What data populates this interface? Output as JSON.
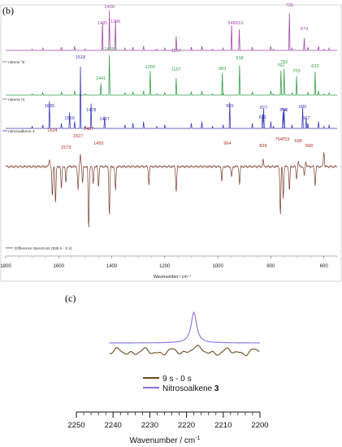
{
  "colors": {
    "nitrosoalkene_top": "#a04aa8",
    "nitrene_mid": "#35a04a",
    "nitrosoalkene": "#3a3ab8",
    "difference": "#7a3a2a",
    "peak_label_diff": "#b0302a",
    "c_blue": "#8a6fe0",
    "c_brown": "#6b4a1c"
  },
  "panel_b": {
    "label": "(b)",
    "chart_data": {
      "type": "line",
      "xlabel": "Wavenumber / cm⁻¹",
      "xlim": [
        1800,
        550
      ],
      "xreversed": true,
      "xticks": [
        1800,
        1600,
        1400,
        1200,
        1000,
        800,
        600
      ],
      "series": [
        {
          "name": "",
          "peaks": [
            {
              "x": 1435,
              "h": 0.68
            },
            {
              "x": 1409,
              "h": 0.98
            },
            {
              "x": 1386,
              "h": 0.72
            },
            {
              "x": 1157,
              "h": 0.35
            },
            {
              "x": 948,
              "h": 0.62
            },
            {
              "x": 919,
              "h": 0.52
            },
            {
              "x": 730,
              "h": 0.92
            },
            {
              "x": 674,
              "h": 0.3
            }
          ],
          "labels": [
            "1435",
            "1409",
            "1386",
            "1157",
            "948",
            "919",
            "730",
            "674"
          ]
        },
        {
          "name": "nitrene ³2",
          "peaks": [
            {
              "x": 1441,
              "h": 0.28
            },
            {
              "x": 1409,
              "h": 0.95
            },
            {
              "x": 1255,
              "h": 0.58
            },
            {
              "x": 1157,
              "h": 0.4
            },
            {
              "x": 983,
              "h": 0.52
            },
            {
              "x": 918,
              "h": 0.7
            },
            {
              "x": 762,
              "h": 0.58
            },
            {
              "x": 750,
              "h": 0.62
            },
            {
              "x": 703,
              "h": 0.45
            },
            {
              "x": 633,
              "h": 0.55
            }
          ],
          "labels": [
            "1441",
            "1409",
            "1255",
            "1157",
            "983",
            "918",
            "762",
            "750",
            "703",
            "633"
          ]
        },
        {
          "name": "nitrene ¹2",
          "peaks": [
            {
              "x": 1635,
              "h": 0.42
            },
            {
              "x": 1559,
              "h": 0.25
            },
            {
              "x": 1518,
              "h": 0.95
            },
            {
              "x": 1478,
              "h": 0.38
            },
            {
              "x": 1427,
              "h": 0.18
            },
            {
              "x": 955,
              "h": 0.4
            },
            {
              "x": 831,
              "h": 0.22
            },
            {
              "x": 827,
              "h": 0.3
            },
            {
              "x": 754,
              "h": 0.25
            },
            {
              "x": 750,
              "h": 0.3
            },
            {
              "x": 680,
              "h": 0.32
            },
            {
              "x": 667,
              "h": 0.16
            }
          ],
          "labels": [
            "1635",
            "1559",
            "1518",
            "1478",
            "1427",
            "955",
            "831",
            "827",
            "754",
            "750",
            "680",
            "667"
          ]
        },
        {
          "name": "nitrosoalkene 3",
          "peaks": [],
          "labels": []
        },
        {
          "name": "Difference Spectrum (536 s - 0 s)",
          "labels": [
            "1624",
            "1573",
            "1527",
            "1487",
            "1450",
            "964",
            "829",
            "764",
            "753",
            "696",
            "668"
          ],
          "label_x": [
            1624,
            1573,
            1527,
            1487,
            1450,
            964,
            829,
            764,
            753,
            696,
            668
          ]
        }
      ]
    }
  },
  "panel_c": {
    "label": "(c)",
    "chart_data": {
      "type": "line",
      "xlabel": "Wavenumber / cm",
      "xlabel_sup": "-1",
      "xlim": [
        2250,
        2200
      ],
      "xreversed": true,
      "xticks": [
        2250,
        2240,
        2230,
        2220,
        2210,
        2200
      ],
      "series": [
        {
          "name": "9 s - 0 s"
        },
        {
          "name": "Nitrosoalkene 3",
          "name_plain": "Nitrosoalkene ",
          "name_bold": "3",
          "peak_x": 2218
        }
      ]
    }
  }
}
